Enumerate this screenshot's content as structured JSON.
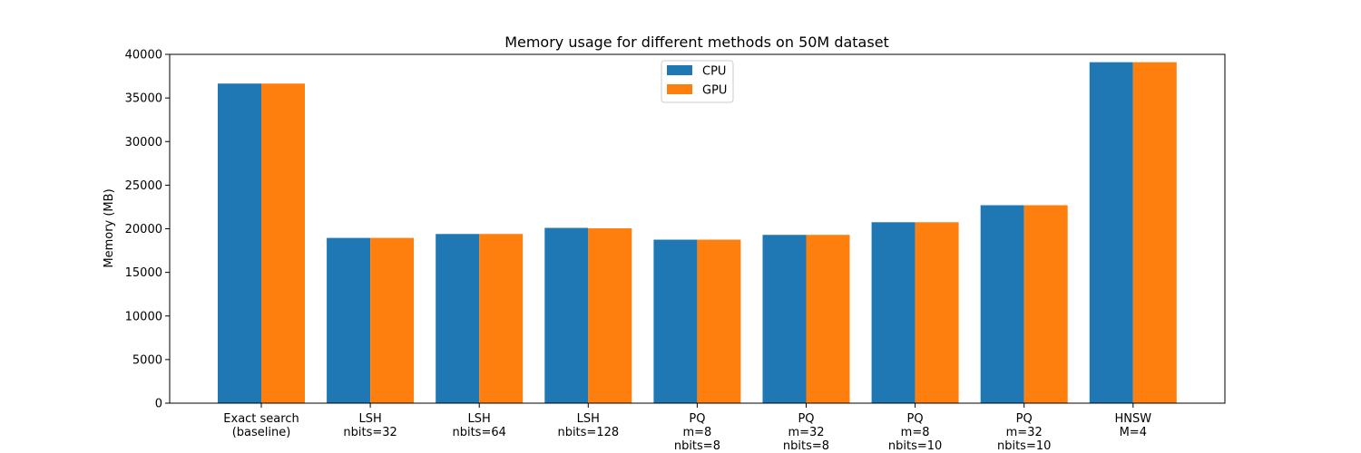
{
  "chart_data": {
    "type": "bar",
    "title": "Memory usage for different methods on 50M dataset",
    "xlabel": "",
    "ylabel": "Memory (MB)",
    "ylim": [
      0,
      40000
    ],
    "yticks": [
      0,
      5000,
      10000,
      15000,
      20000,
      25000,
      30000,
      35000,
      40000
    ],
    "categories": [
      "Exact search\n(baseline)",
      "LSH\nnbits=32",
      "LSH\nnbits=64",
      "LSH\nnbits=128",
      "PQ\nm=8\nnbits=8",
      "PQ\nm=32\nnbits=8",
      "PQ\nm=8\nnbits=10",
      "PQ\nm=32\nnbits=10",
      "HNSW\nM=4"
    ],
    "series": [
      {
        "name": "CPU",
        "color": "#1f77b4",
        "values": [
          36650,
          18950,
          19400,
          20100,
          18750,
          19300,
          20750,
          22700,
          39100
        ]
      },
      {
        "name": "GPU",
        "color": "#ff7f0e",
        "values": [
          36650,
          18950,
          19400,
          20050,
          18750,
          19300,
          20750,
          22700,
          39100
        ]
      }
    ],
    "legend": "top-center",
    "grid": false
  }
}
